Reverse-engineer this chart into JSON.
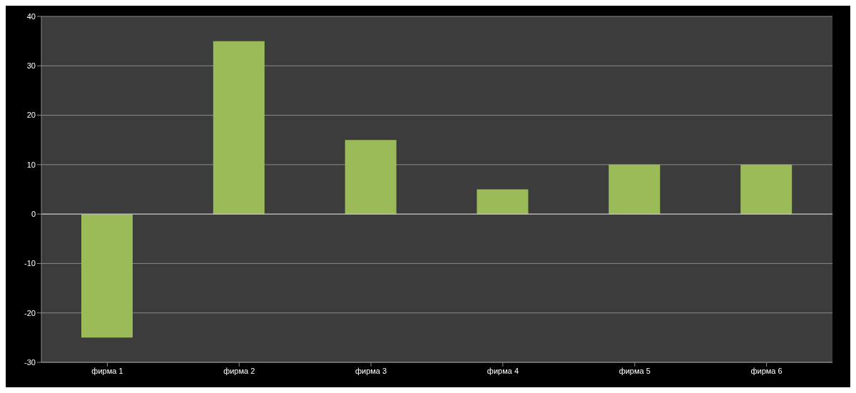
{
  "chart_data": {
    "type": "bar",
    "categories": [
      "фирма 1",
      "фирма 2",
      "фирма 3",
      "фирма 4",
      "фирма 5",
      "фирма 6"
    ],
    "values": [
      -25,
      35,
      15,
      5,
      10,
      10
    ],
    "color": "#9bbb59",
    "ylim": [
      -30,
      40
    ],
    "yticks": [
      -30,
      -20,
      -10,
      0,
      10,
      20,
      30,
      40
    ],
    "grid": "y"
  }
}
